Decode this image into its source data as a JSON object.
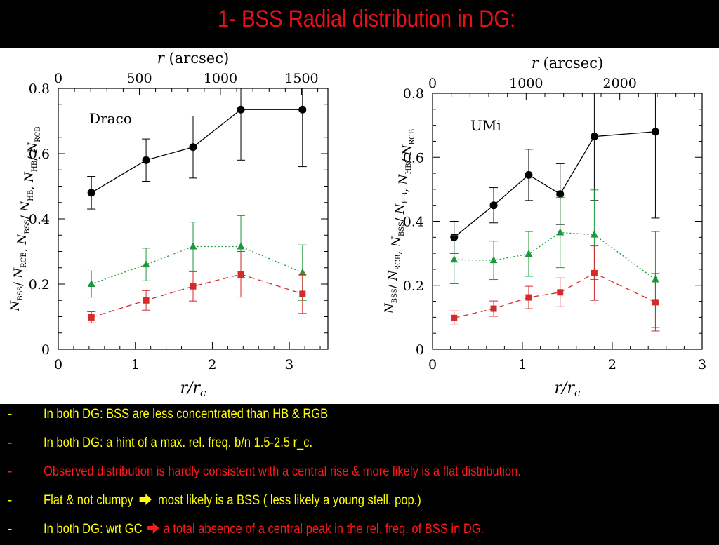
{
  "slide": {
    "title": "1- BSS Radial distribution in DG:"
  },
  "bullets": [
    {
      "dash": "-",
      "parts": [
        {
          "text": "In both DG: BSS are less concentrated than HB & RGB",
          "color": "yellow"
        }
      ]
    },
    {
      "dash": "-",
      "parts": [
        {
          "text": "In both DG: a hint of a max. rel. freq. b/n 1.5-2.5 r_c.",
          "color": "yellow"
        }
      ]
    },
    {
      "dash": "-",
      "parts": [
        {
          "text": "Observed distribution is hardly consistent with a central rise & more likely is a flat distribution.",
          "color": "red"
        }
      ]
    },
    {
      "dash": "-",
      "parts": [
        {
          "text": "Flat & not clumpy",
          "color": "yellow"
        },
        {
          "arrow": true
        },
        {
          "text": "most likely is a  BSS ( less likely a young stell. pop.)",
          "color": "yellow"
        }
      ]
    },
    {
      "dash": "-",
      "parts": [
        {
          "text": "In both DG: wrt GC",
          "color": "yellow"
        },
        {
          "arrow": true
        },
        {
          "text": " a total absence of a central peak in the rel. freq. of BSS in DG.",
          "color": "red"
        }
      ]
    }
  ],
  "colors": {
    "title": "#e8101a",
    "yellow_text": "#ffff00",
    "red_text": "#ff1a1a",
    "series_black": "#000000",
    "series_green": "#1a9a3a",
    "series_red": "#d42a2a"
  },
  "chart_data": [
    {
      "type": "scatter",
      "panel_label": "Draco",
      "xlabel": "r/r_c",
      "top_xlabel": "r (arcsec)",
      "ylabel": "N_BSS/ N_RCB, N_BSS/ N_HB, N_HB/ N_RCB",
      "xlim": [
        0,
        3.5
      ],
      "ylim": [
        0,
        0.8
      ],
      "x_ticks": [
        "0",
        "1",
        "2",
        "3"
      ],
      "y_ticks": [
        "0",
        "0.2",
        "0.4",
        "0.6",
        "0.8"
      ],
      "top_ticks": [
        "0",
        "500",
        "1000",
        "1500"
      ],
      "arcsec_per_rc": 475,
      "series": [
        {
          "marker": "circle",
          "line": "solid",
          "color": "#000000",
          "x": [
            0.43,
            1.14,
            1.75,
            2.37,
            3.17
          ],
          "y": [
            0.48,
            0.58,
            0.62,
            0.735,
            0.735
          ],
          "err": [
            0.05,
            0.065,
            0.095,
            0.155,
            0.175
          ]
        },
        {
          "marker": "triangle",
          "line": "dotted",
          "color": "#1a9a3a",
          "x": [
            0.43,
            1.14,
            1.75,
            2.37,
            3.17
          ],
          "y": [
            0.2,
            0.26,
            0.315,
            0.315,
            0.235
          ],
          "err": [
            0.04,
            0.05,
            0.075,
            0.095,
            0.085
          ]
        },
        {
          "marker": "square",
          "line": "dashed",
          "color": "#d42a2a",
          "x": [
            0.43,
            1.14,
            1.75,
            2.37,
            3.17
          ],
          "y": [
            0.098,
            0.15,
            0.193,
            0.23,
            0.17
          ],
          "err": [
            0.017,
            0.03,
            0.045,
            0.07,
            0.06
          ]
        }
      ]
    },
    {
      "type": "scatter",
      "panel_label": "UMi",
      "xlabel": "r/r_c",
      "top_xlabel": "r (arcsec)",
      "ylabel": "N_BSS/ N_RCB, N_BSS/ N_HB, N_HB/ N_RCB",
      "xlim": [
        0,
        3
      ],
      "ylim": [
        0,
        0.8
      ],
      "x_ticks": [
        "0",
        "1",
        "2",
        "3"
      ],
      "y_ticks": [
        "0",
        "0.2",
        "0.4",
        "0.6",
        "0.8"
      ],
      "top_ticks": [
        "0",
        "1000",
        "2000"
      ],
      "arcsec_per_rc": 960,
      "series": [
        {
          "marker": "circle",
          "line": "solid",
          "color": "#000000",
          "x": [
            0.24,
            0.68,
            1.07,
            1.42,
            1.8,
            2.48
          ],
          "y": [
            0.35,
            0.45,
            0.545,
            0.485,
            0.665,
            0.68
          ],
          "err": [
            0.05,
            0.055,
            0.08,
            0.095,
            0.2,
            0.27
          ]
        },
        {
          "marker": "triangle",
          "line": "dotted",
          "color": "#1a9a3a",
          "x": [
            0.24,
            0.68,
            1.07,
            1.42,
            1.8,
            2.48
          ],
          "y": [
            0.28,
            0.278,
            0.298,
            0.365,
            0.358,
            0.218
          ],
          "err": [
            0.075,
            0.06,
            0.07,
            0.11,
            0.14,
            0.15
          ]
        },
        {
          "marker": "square",
          "line": "dashed",
          "color": "#d42a2a",
          "x": [
            0.24,
            0.68,
            1.07,
            1.42,
            1.8,
            2.48
          ],
          "y": [
            0.098,
            0.127,
            0.162,
            0.178,
            0.238,
            0.147
          ],
          "err": [
            0.022,
            0.024,
            0.035,
            0.045,
            0.085,
            0.09
          ]
        }
      ]
    }
  ]
}
